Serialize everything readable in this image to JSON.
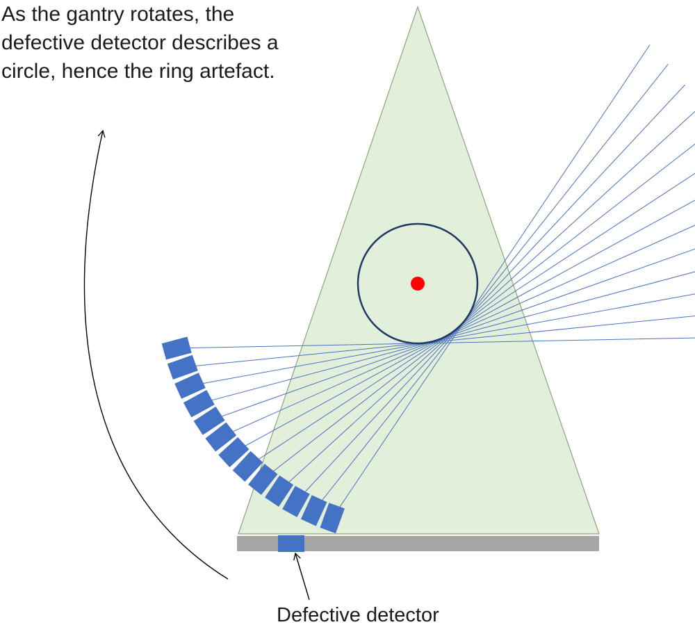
{
  "caption": {
    "line1": "As the gantry rotates, the",
    "line2": "defective detector describes a",
    "line3": "circle, hence the ring artefact."
  },
  "labels": {
    "defective_detector": "Defective detector"
  },
  "colors": {
    "fan_fill": "#e2efda",
    "fan_stroke": "#8aa67a",
    "ray": "#4a6fbf",
    "detector": "#4472c4",
    "detector_bar": "#a6a6a6",
    "ring": "#1f3864",
    "centre_dot": "#ff0000",
    "arrow": "#000000"
  },
  "detector_count": 13
}
